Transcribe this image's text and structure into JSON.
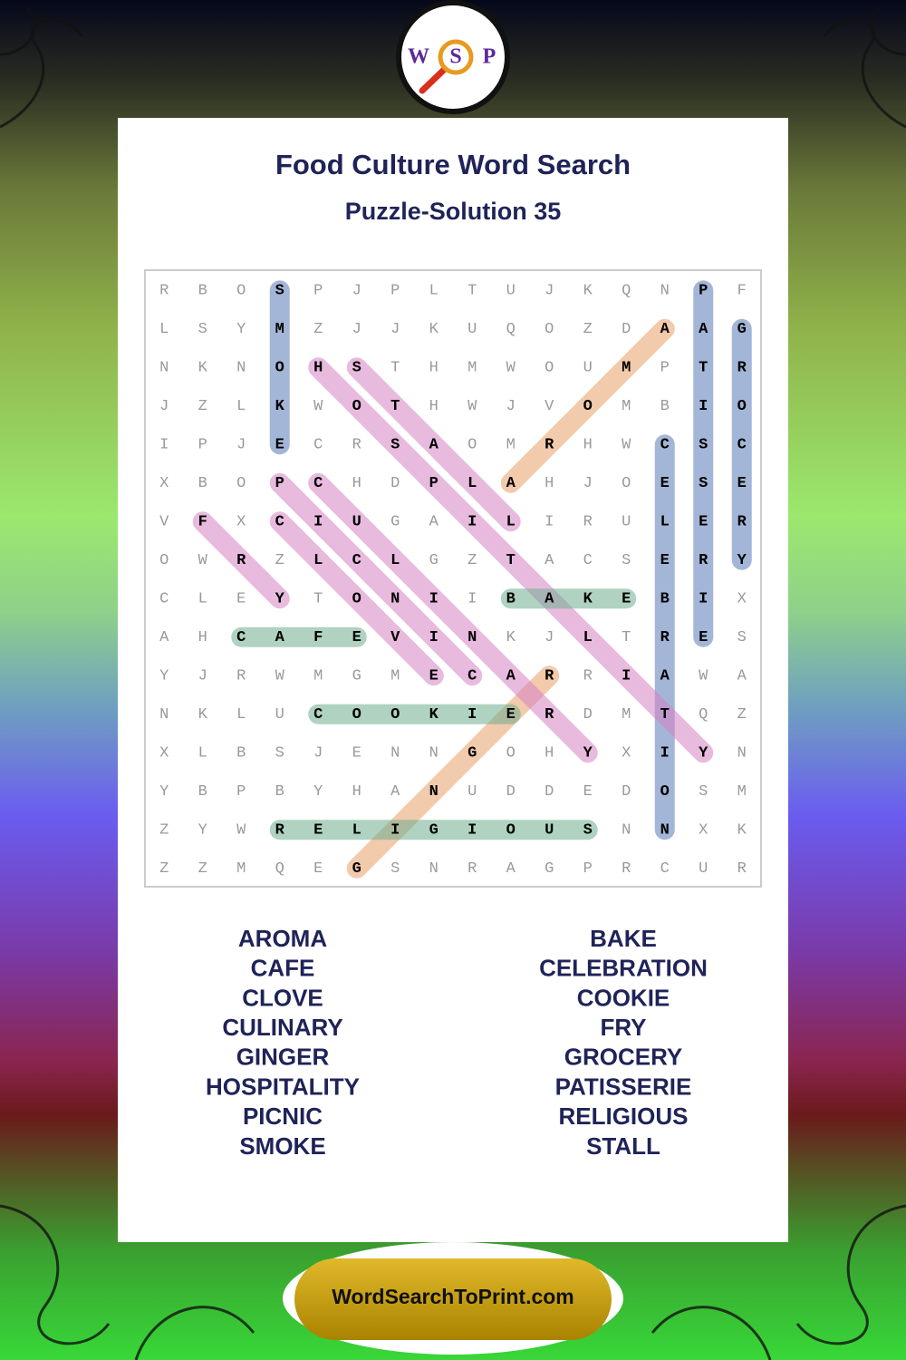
{
  "logo": {
    "letters": [
      "W",
      "S",
      "P"
    ]
  },
  "header": {
    "title": "Food Culture Word Search",
    "subtitle": "Puzzle-Solution 35"
  },
  "grid": {
    "rows": [
      [
        "R",
        "B",
        "O",
        "S",
        "P",
        "J",
        "P",
        "L",
        "T",
        "U",
        "J",
        "K",
        "Q",
        "N",
        "P",
        "F"
      ],
      [
        "L",
        "S",
        "Y",
        "M",
        "Z",
        "J",
        "J",
        "K",
        "U",
        "Q",
        "O",
        "Z",
        "D",
        "A",
        "A",
        "G"
      ],
      [
        "N",
        "K",
        "N",
        "O",
        "H",
        "S",
        "T",
        "H",
        "M",
        "W",
        "O",
        "U",
        "M",
        "P",
        "T",
        "R"
      ],
      [
        "J",
        "Z",
        "L",
        "K",
        "W",
        "O",
        "T",
        "H",
        "W",
        "J",
        "V",
        "O",
        "M",
        "B",
        "I",
        "O"
      ],
      [
        "I",
        "P",
        "J",
        "E",
        "C",
        "R",
        "S",
        "A",
        "O",
        "M",
        "R",
        "H",
        "W",
        "C",
        "S",
        "C"
      ],
      [
        "X",
        "B",
        "O",
        "P",
        "C",
        "H",
        "D",
        "P",
        "L",
        "A",
        "H",
        "J",
        "O",
        "E",
        "S",
        "E"
      ],
      [
        "V",
        "F",
        "X",
        "C",
        "I",
        "U",
        "G",
        "A",
        "I",
        "L",
        "I",
        "R",
        "U",
        "L",
        "E",
        "R"
      ],
      [
        "O",
        "W",
        "R",
        "Z",
        "L",
        "C",
        "L",
        "G",
        "Z",
        "T",
        "A",
        "C",
        "S",
        "E",
        "R",
        "Y"
      ],
      [
        "C",
        "L",
        "E",
        "Y",
        "T",
        "O",
        "N",
        "I",
        "I",
        "B",
        "A",
        "K",
        "E",
        "B",
        "I",
        "X"
      ],
      [
        "A",
        "H",
        "C",
        "A",
        "F",
        "E",
        "V",
        "I",
        "N",
        "K",
        "J",
        "L",
        "T",
        "R",
        "E",
        "S"
      ],
      [
        "Y",
        "J",
        "R",
        "W",
        "M",
        "G",
        "M",
        "E",
        "C",
        "A",
        "R",
        "R",
        "I",
        "A",
        "W",
        "A"
      ],
      [
        "N",
        "K",
        "L",
        "U",
        "C",
        "O",
        "O",
        "K",
        "I",
        "E",
        "R",
        "D",
        "M",
        "T",
        "Q",
        "Z"
      ],
      [
        "X",
        "L",
        "B",
        "S",
        "J",
        "E",
        "N",
        "N",
        "G",
        "O",
        "H",
        "Y",
        "X",
        "I",
        "Y",
        "N"
      ],
      [
        "Y",
        "B",
        "P",
        "B",
        "Y",
        "H",
        "A",
        "N",
        "U",
        "D",
        "D",
        "E",
        "D",
        "O",
        "S",
        "M"
      ],
      [
        "Z",
        "Y",
        "W",
        "R",
        "E",
        "L",
        "I",
        "G",
        "I",
        "O",
        "U",
        "S",
        "N",
        "N",
        "X",
        "K"
      ],
      [
        "Z",
        "Z",
        "M",
        "Q",
        "E",
        "G",
        "S",
        "N",
        "R",
        "A",
        "G",
        "P",
        "R",
        "C",
        "U",
        "R"
      ]
    ]
  },
  "words": {
    "left": [
      "AROMA",
      "CAFE",
      "CLOVE",
      "CULINARY",
      "GINGER",
      "HOSPITALITY",
      "PICNIC",
      "SMOKE"
    ],
    "right": [
      "BAKE",
      "CELEBRATION",
      "COOKIE",
      "FRY",
      "GROCERY",
      "PATISSERIE",
      "RELIGIOUS",
      "STALL"
    ]
  },
  "footer": {
    "site": "WordSearchToPrint.com"
  }
}
